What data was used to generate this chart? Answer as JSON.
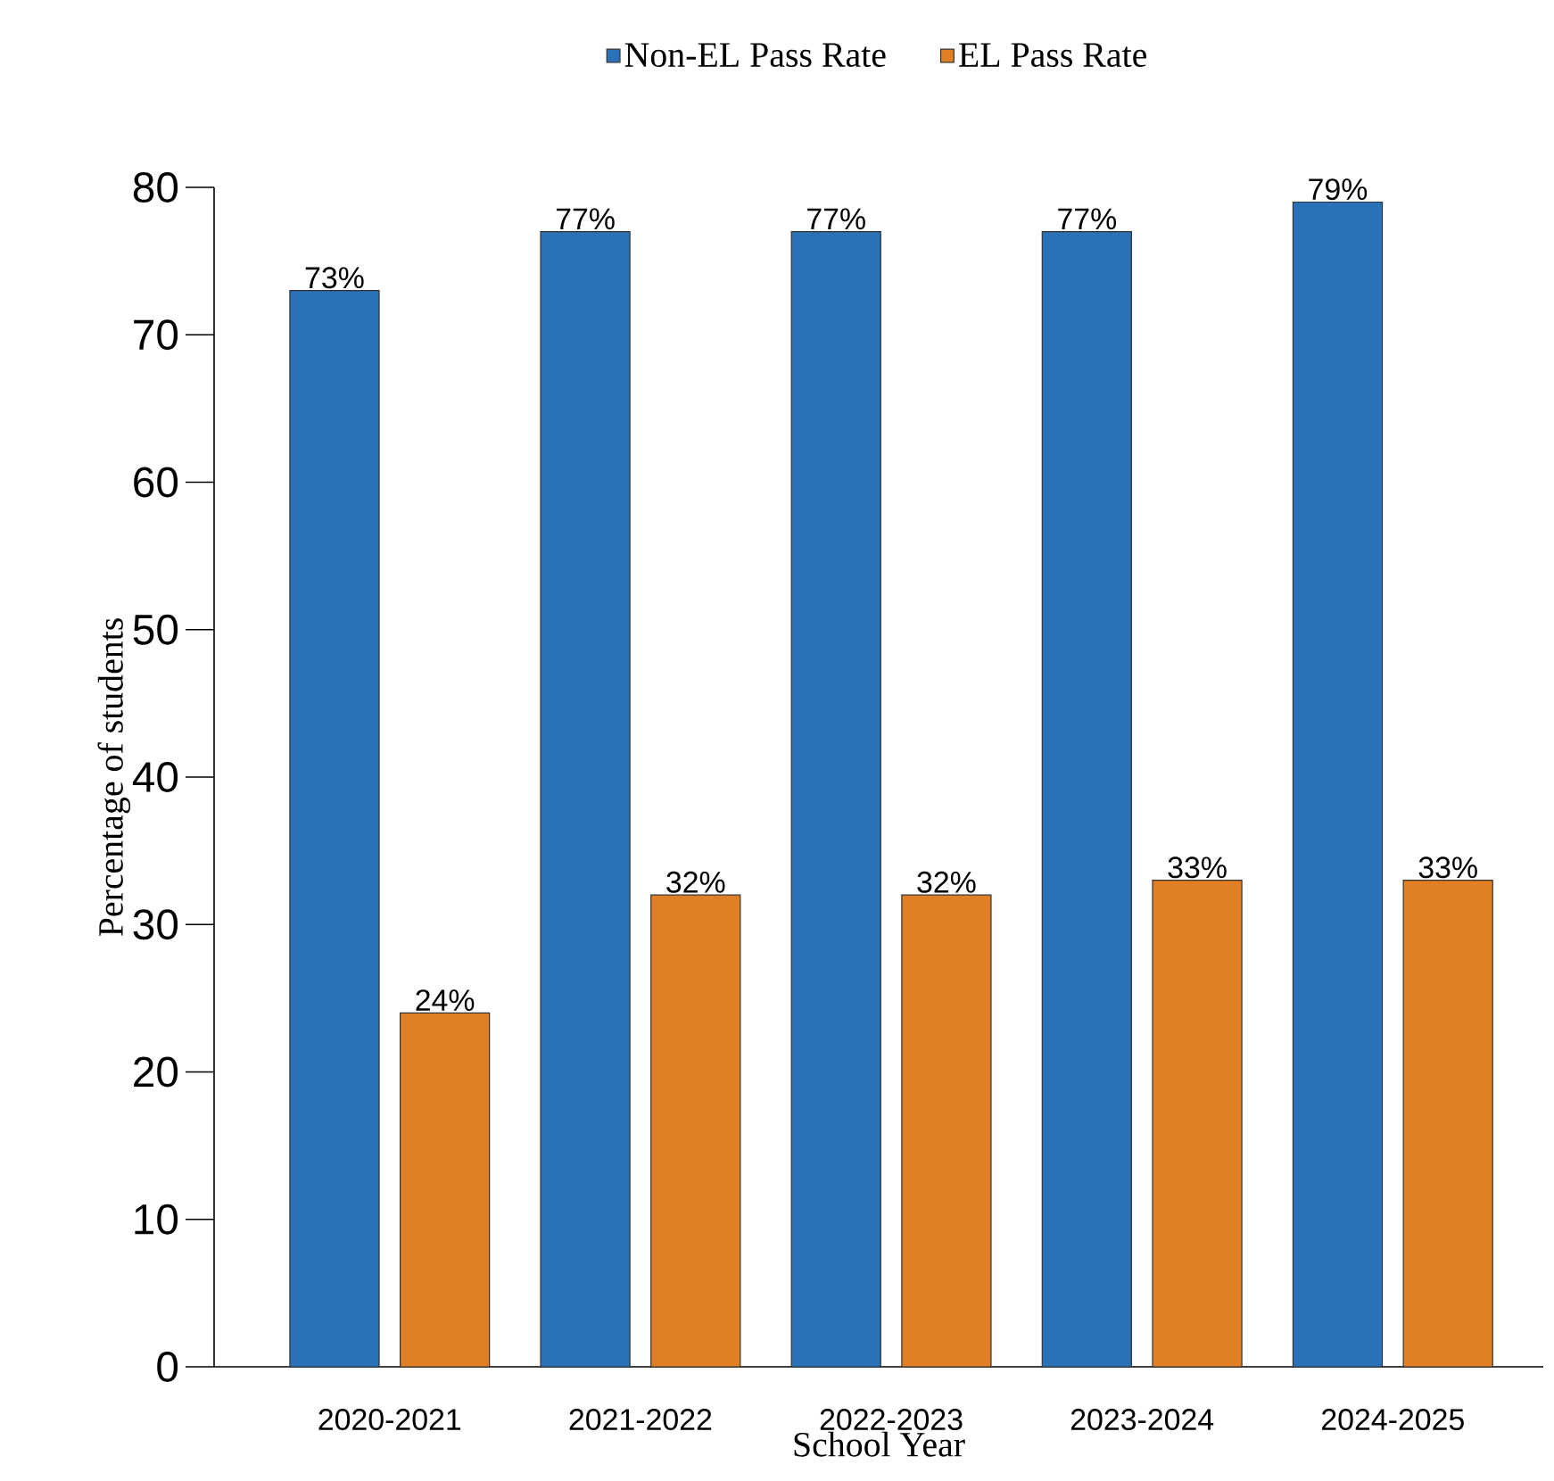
{
  "chart_data": {
    "type": "bar",
    "xlabel": "School Year",
    "ylabel": "Percentage of students",
    "categories": [
      "2020-2021",
      "2021-2022",
      "2022-2023",
      "2023-2024",
      "2024-2025"
    ],
    "ylim": [
      0,
      80
    ],
    "yticks": [
      0,
      10,
      20,
      30,
      40,
      50,
      60,
      70,
      80
    ],
    "legend": "top",
    "series": [
      {
        "name": "Non-EL Pass Rate",
        "color": "#2a72b8",
        "values": [
          73,
          77,
          77,
          77,
          79
        ],
        "value_labels": [
          "73%",
          "77%",
          "77%",
          "77%",
          "79%"
        ]
      },
      {
        "name": "EL Pass Rate",
        "color": "#e07f26",
        "values": [
          24,
          32,
          32,
          33,
          33
        ],
        "value_labels": [
          "24%",
          "32%",
          "32%",
          "33%",
          "33%"
        ]
      }
    ]
  }
}
